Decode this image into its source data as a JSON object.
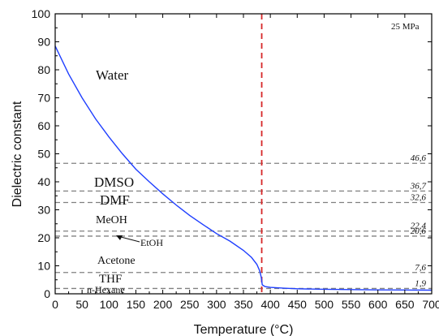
{
  "chart_data": {
    "type": "line",
    "title": "",
    "xlabel": "Temperature (°C)",
    "ylabel": "Dielectric constant",
    "xlim": [
      0,
      700
    ],
    "ylim": [
      0,
      100
    ],
    "xticks": [
      0,
      50,
      100,
      150,
      200,
      250,
      300,
      350,
      400,
      450,
      500,
      550,
      600,
      650,
      700
    ],
    "yticks": [
      0,
      10,
      20,
      30,
      40,
      50,
      60,
      70,
      80,
      90,
      100
    ],
    "annotation": "25 MPa",
    "critical_temperature_line": {
      "x": 384,
      "color": "#d62728",
      "style": "dashed"
    },
    "series": [
      {
        "name": "Water",
        "color": "#1f3fff",
        "x": [
          0,
          25,
          50,
          75,
          100,
          125,
          150,
          175,
          200,
          225,
          250,
          275,
          300,
          325,
          350,
          365,
          375,
          380,
          383,
          385,
          390,
          400,
          425,
          450,
          500,
          550,
          600,
          650,
          700
        ],
        "y": [
          88.5,
          78.5,
          70,
          62.5,
          56,
          50,
          44.5,
          40,
          35.7,
          31.7,
          28,
          24.7,
          21.5,
          18.8,
          15.5,
          13,
          10.5,
          8.3,
          6,
          3.2,
          2.6,
          2.3,
          2.0,
          1.8,
          1.6,
          1.5,
          1.4,
          1.35,
          1.3
        ]
      }
    ],
    "reference_lines": [
      {
        "solvent": "DMSO",
        "value": 46.6,
        "label": "46,6"
      },
      {
        "solvent": "DMF",
        "value": 36.7,
        "label": "36,7"
      },
      {
        "solvent": "MeOH",
        "value": 32.6,
        "label": "32,6"
      },
      {
        "solvent": "EtOH",
        "value": 22.4,
        "label": "22,4"
      },
      {
        "solvent": "Acetone",
        "value": 20.6,
        "label": "20,6"
      },
      {
        "solvent": "THF",
        "value": 7.6,
        "label": "7,6"
      },
      {
        "solvent": "n-Hexane",
        "value": 1.9,
        "label": "1,9"
      }
    ],
    "region_labels": [
      "Water",
      "DMSO",
      "DMF",
      "MeOH",
      "EtOH",
      "Acetone",
      "THF",
      "n-Hexane"
    ],
    "colors": {
      "reference_line": "#808080",
      "axis": "#000000"
    }
  }
}
